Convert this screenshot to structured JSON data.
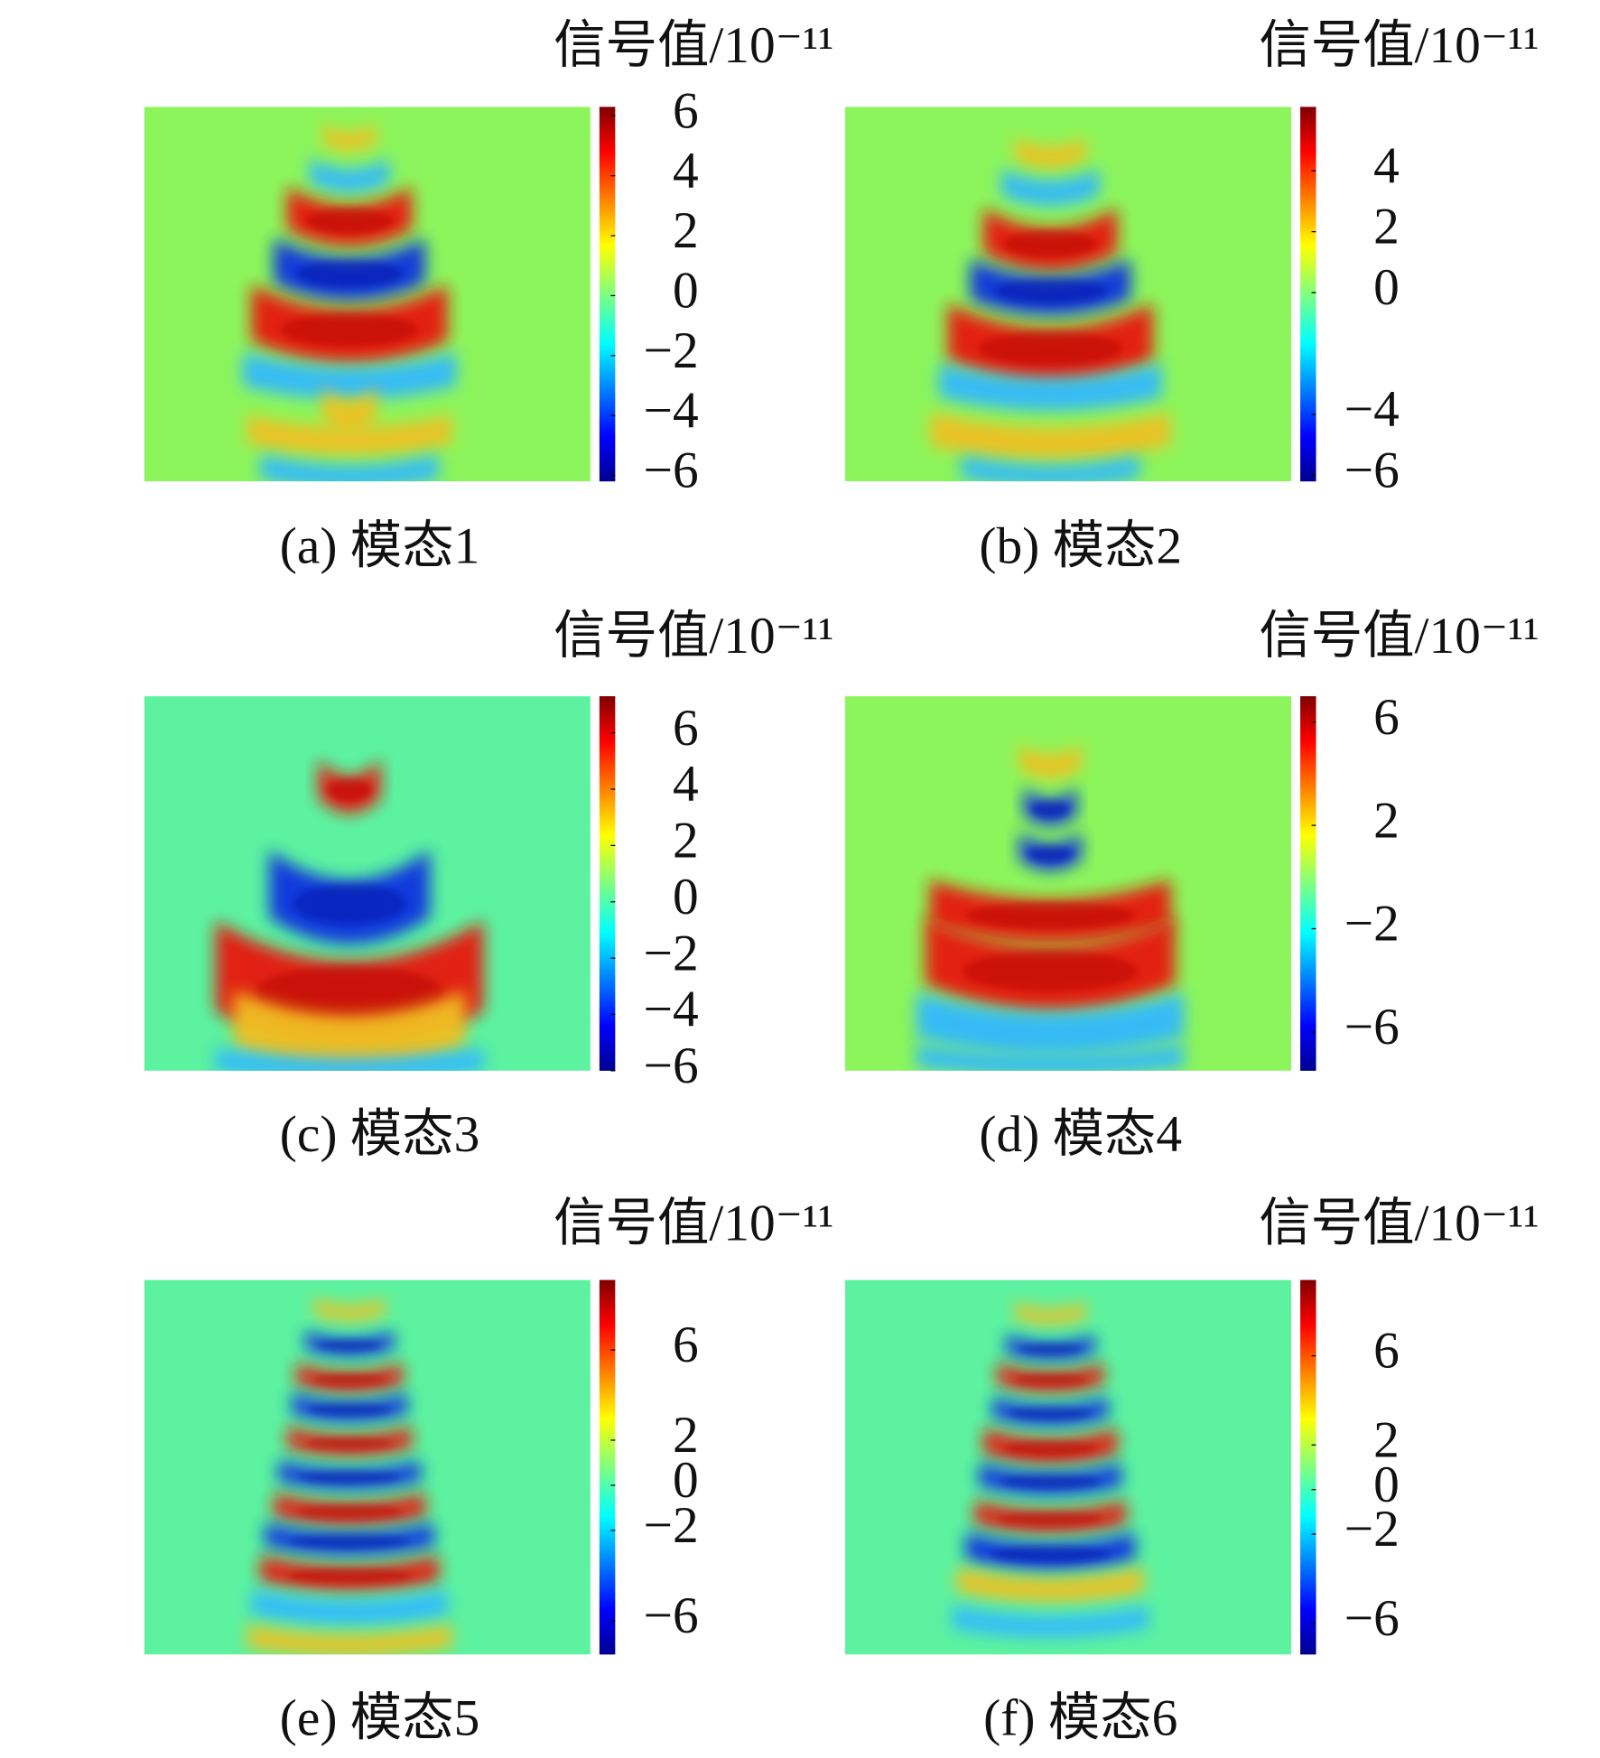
{
  "chart_data": [
    {
      "type": "heatmap",
      "colorbar_label": "信号值/10⁻¹¹",
      "caption": "(a) 模态1",
      "ylim": [
        -6.2,
        6.3
      ],
      "yticks": [
        6,
        4,
        2,
        0,
        {
          "value": -2,
          "label": "−2"
        },
        {
          "value": -4,
          "label": "−4"
        },
        {
          "value": -6,
          "label": "−6"
        }
      ]
    },
    {
      "type": "heatmap",
      "colorbar_label": "信号值/10⁻¹¹",
      "caption": "(b) 模态2",
      "ylim": [
        -6.2,
        6.1
      ],
      "yticks": [
        4,
        2,
        0,
        {
          "value": -4,
          "label": "−4"
        },
        {
          "value": -6,
          "label": "−6"
        }
      ]
    },
    {
      "type": "heatmap",
      "colorbar_label": "信号值/10⁻¹¹",
      "caption": "(c) 模态3",
      "ylim": [
        -6,
        7.3
      ],
      "yticks": [
        6,
        4,
        2,
        0,
        {
          "value": -2,
          "label": "−2"
        },
        {
          "value": -4,
          "label": "−4"
        },
        {
          "value": -6,
          "label": "−6"
        }
      ]
    },
    {
      "type": "heatmap",
      "colorbar_label": "信号值/10⁻¹¹",
      "caption": "(d) 模态4",
      "ylim": [
        -7.5,
        7.0
      ],
      "yticks": [
        6,
        2,
        {
          "value": -2,
          "label": "−2"
        },
        {
          "value": -6,
          "label": "−6"
        }
      ]
    },
    {
      "type": "heatmap",
      "colorbar_label": "信号值/10⁻¹¹",
      "caption": "(e) 模态5",
      "ylim": [
        -7.5,
        9.1
      ],
      "yticks": [
        6,
        2,
        0,
        {
          "value": -2,
          "label": "−2"
        },
        {
          "value": -6,
          "label": "−6"
        }
      ]
    },
    {
      "type": "heatmap",
      "colorbar_label": "信号值/10⁻¹¹",
      "caption": "(f) 模态6",
      "ylim": [
        -7.4,
        9.4
      ],
      "yticks": [
        6,
        2,
        0,
        {
          "value": -2,
          "label": "−2"
        },
        {
          "value": -6,
          "label": "−6"
        }
      ]
    }
  ]
}
